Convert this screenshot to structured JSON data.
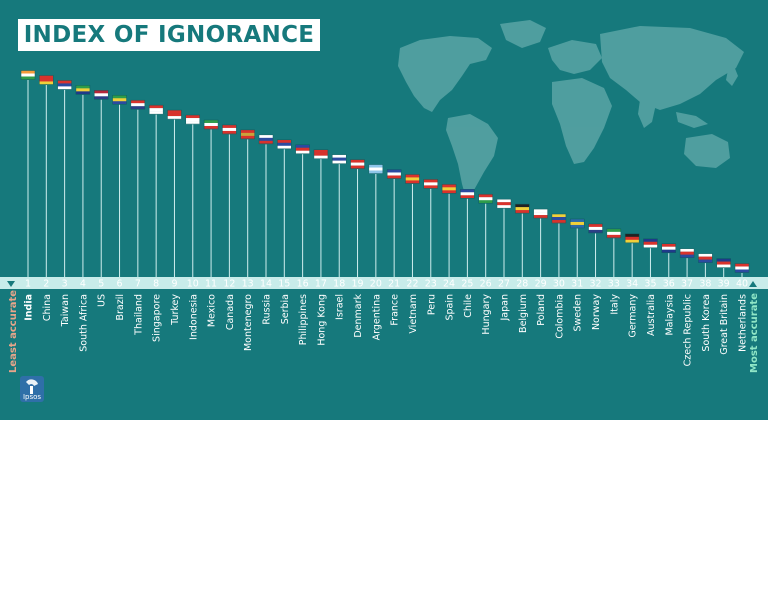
{
  "colors": {
    "background": "#16797c",
    "axis_band": "#c8ecea",
    "text": "#ffffff",
    "least_accurate_label": "#e7a58a",
    "most_accurate_label": "#8fe6c6",
    "map": "#5aa5a6"
  },
  "chart_data": {
    "type": "bar",
    "title": "INDEX OF IGNORANCE",
    "categories": [
      "India",
      "China",
      "Taiwan",
      "South Africa",
      "US",
      "Brazil",
      "Thailand",
      "Singapore",
      "Turkey",
      "Indonesia",
      "Mexico",
      "Canada",
      "Montenegro",
      "Russia",
      "Serbia",
      "Philippines",
      "Hong Kong",
      "Israel",
      "Denmark",
      "Argentina",
      "France",
      "Vietnam",
      "Peru",
      "Spain",
      "Chile",
      "Hungary",
      "Japan",
      "Belgium",
      "Poland",
      "Colombia",
      "Sweden",
      "Norway",
      "Italy",
      "Germany",
      "Australia",
      "Malaysia",
      "Czech Republic",
      "South Korea",
      "Great Britain",
      "Netherlands"
    ],
    "ranks": [
      1,
      2,
      3,
      4,
      5,
      6,
      7,
      8,
      9,
      10,
      11,
      12,
      13,
      14,
      15,
      16,
      17,
      18,
      19,
      20,
      21,
      22,
      23,
      24,
      25,
      26,
      27,
      28,
      29,
      30,
      31,
      32,
      33,
      34,
      35,
      36,
      37,
      38,
      39,
      40
    ],
    "values": [
      40,
      39,
      38,
      37,
      36,
      35,
      34,
      33,
      32,
      31,
      30,
      29,
      28,
      27,
      26,
      25,
      24,
      23,
      22,
      21,
      20,
      19,
      18,
      17,
      16,
      15,
      14,
      13,
      12,
      11,
      10,
      9,
      8,
      7,
      6,
      5,
      4,
      3,
      2,
      1
    ],
    "ylim": [
      0,
      40
    ],
    "least_label": "Least accurate",
    "most_label": "Most accurate",
    "legend": "none",
    "grid": false
  },
  "icons": {
    "flags": "flag-icon",
    "logo": "ipsos-logo-icon",
    "arrow_left": "triangle-down-icon",
    "arrow_right": "triangle-up-icon",
    "map": "world-map-icon"
  },
  "branding": {
    "logo_text": "Ipsos"
  }
}
